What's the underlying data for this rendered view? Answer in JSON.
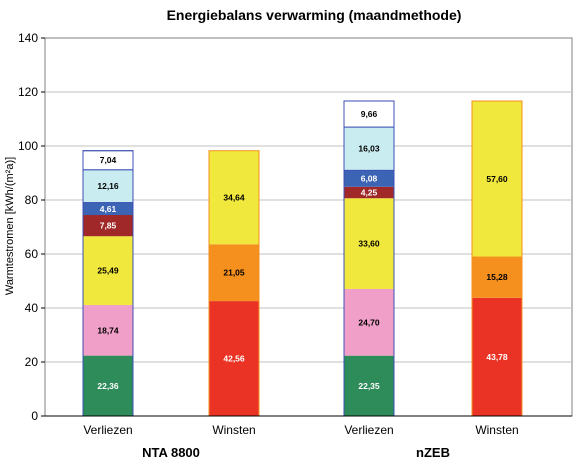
{
  "chart_data": {
    "type": "bar",
    "stacked": true,
    "title": "Energiebalans verwarming (maandmethode)",
    "ylabel": "Warmtestromen [kWh/(m²a)]",
    "xlabel": "",
    "ylim": [
      0,
      140
    ],
    "yticks": [
      0,
      20,
      40,
      60,
      80,
      100,
      120,
      140
    ],
    "grid": true,
    "categories": [
      "Verliezen",
      "Winsten",
      "Verliezen",
      "Winsten"
    ],
    "groups": [
      {
        "label": "NTA 8800",
        "categories": [
          0,
          1
        ]
      },
      {
        "label": "nZEB",
        "categories": [
          2,
          3
        ]
      }
    ],
    "series": [
      {
        "color": "#2e8b5a",
        "label_color": "#ffffff",
        "values": [
          22.36,
          null,
          22.35,
          null
        ],
        "labels": [
          "22,36",
          "",
          "22,35",
          ""
        ]
      },
      {
        "color": "#f0329b",
        "label_color": "#ffffff",
        "values": [
          null,
          42.56,
          null,
          43.78
        ],
        "labels": [
          "",
          "42,56",
          "",
          "43,78"
        ]
      },
      {
        "color": "#f0a0c8",
        "label_color": "#000000",
        "values": [
          18.74,
          null,
          24.7,
          null
        ],
        "labels": [
          "18,74",
          "",
          "24,70",
          ""
        ]
      },
      {
        "color": "#f5901e",
        "label_color": "#000000",
        "values": [
          null,
          21.05,
          null,
          15.28
        ],
        "labels": [
          "",
          "21,05",
          "",
          "15,28"
        ]
      },
      {
        "color": "#f0e83c",
        "label_color": "#000000",
        "values": [
          25.49,
          34.64,
          33.6,
          57.6
        ],
        "labels": [
          "25,49",
          "34,64",
          "33,60",
          "57,60"
        ]
      },
      {
        "color": "#a02828",
        "label_color": "#ffffff",
        "values": [
          7.85,
          null,
          4.25,
          null
        ],
        "labels": [
          "7,85",
          "",
          "4,25",
          ""
        ]
      },
      {
        "color": "#3c64b4",
        "label_color": "#ffffff",
        "values": [
          4.61,
          null,
          6.08,
          null
        ],
        "labels": [
          "4,61",
          "",
          "6,08",
          ""
        ]
      },
      {
        "color": "#c8ecf0",
        "label_color": "#000000",
        "values": [
          12.16,
          null,
          16.03,
          null
        ],
        "labels": [
          "12,16",
          "",
          "16,03",
          ""
        ]
      },
      {
        "color": "#ffffff",
        "label_color": "#000000",
        "values": [
          7.04,
          null,
          9.66,
          null
        ],
        "labels": [
          "7,04",
          "",
          "9,66",
          ""
        ]
      }
    ],
    "colors": {
      "gain_bottom": "#ea3324",
      "plot_border": "#808080",
      "grid": "#c0c0c0",
      "verliezen_outline": "#3c50b4",
      "winsten_outline": "#f5901e"
    }
  }
}
